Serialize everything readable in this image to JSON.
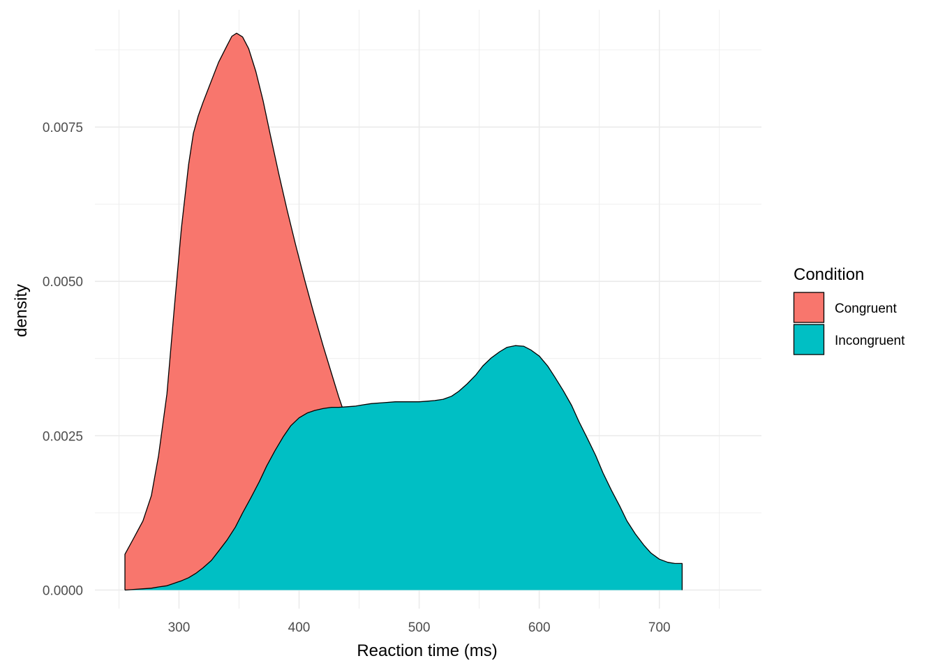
{
  "chart_data": {
    "type": "area",
    "subtype": "density",
    "title": "",
    "xlabel": "Reaction time (ms)",
    "ylabel": "density",
    "xlim": [
      230,
      785
    ],
    "ylim": [
      -0.0003,
      0.0094
    ],
    "x_ticks": [
      300,
      400,
      500,
      600,
      700
    ],
    "y_ticks": [
      0.0,
      0.0025,
      0.005,
      0.0075
    ],
    "x_tick_labels": [
      "300",
      "400",
      "500",
      "600",
      "700"
    ],
    "y_tick_labels": [
      "0.0000",
      "0.0025",
      "0.0050",
      "0.0075"
    ],
    "grid": true,
    "legend": {
      "title": "Condition",
      "position": "right"
    },
    "series": [
      {
        "name": "Congruent",
        "color": "#F8766D",
        "x": [
          255,
          262,
          270,
          277,
          283,
          290,
          296,
          302,
          308,
          312,
          316,
          320,
          327,
          333,
          340,
          344,
          348,
          353,
          358,
          364,
          370,
          376,
          383,
          390,
          397,
          405,
          412,
          420,
          427,
          433,
          440,
          447,
          453,
          460,
          467,
          473,
          480,
          487,
          494,
          500,
          508,
          515,
          520,
          528
        ],
        "values": [
          0.00058,
          0.00083,
          0.00112,
          0.00153,
          0.00218,
          0.00318,
          0.00455,
          0.00586,
          0.00689,
          0.0074,
          0.00768,
          0.0079,
          0.00825,
          0.00855,
          0.00882,
          0.00897,
          0.00902,
          0.00896,
          0.00877,
          0.0084,
          0.00793,
          0.00738,
          0.00675,
          0.00616,
          0.0056,
          0.005,
          0.0045,
          0.00396,
          0.00351,
          0.00313,
          0.00273,
          0.00238,
          0.00206,
          0.00175,
          0.00144,
          0.00118,
          0.0009,
          0.00066,
          0.00045,
          0.00029,
          0.00014,
          7e-05,
          3e-05,
          1e-05
        ]
      },
      {
        "name": "Incongruent",
        "color": "#00BFC4",
        "x": [
          255,
          262,
          270,
          277,
          283,
          290,
          296,
          302,
          308,
          314,
          320,
          327,
          333,
          340,
          347,
          353,
          360,
          367,
          373,
          380,
          387,
          393,
          400,
          407,
          413,
          420,
          427,
          433,
          440,
          447,
          453,
          460,
          467,
          473,
          480,
          487,
          493,
          500,
          507,
          513,
          520,
          527,
          533,
          540,
          547,
          553,
          560,
          567,
          573,
          580,
          587,
          593,
          600,
          607,
          613,
          620,
          627,
          633,
          640,
          647,
          653,
          660,
          667,
          673,
          680,
          687,
          693,
          700,
          707,
          713,
          719
        ],
        "values": [
          0.0,
          1e-05,
          2e-05,
          3e-05,
          5e-05,
          7e-05,
          0.00011,
          0.00015,
          0.0002,
          0.00027,
          0.00036,
          0.00048,
          0.00063,
          0.00081,
          0.00102,
          0.00125,
          0.0015,
          0.00176,
          0.00201,
          0.00226,
          0.00249,
          0.00266,
          0.00279,
          0.00287,
          0.00291,
          0.00294,
          0.00296,
          0.00296,
          0.00297,
          0.00298,
          0.003,
          0.00302,
          0.00303,
          0.00304,
          0.00305,
          0.00305,
          0.00305,
          0.00305,
          0.00306,
          0.00307,
          0.00309,
          0.00314,
          0.00322,
          0.00334,
          0.00348,
          0.00363,
          0.00376,
          0.00386,
          0.00393,
          0.00396,
          0.00395,
          0.00389,
          0.00379,
          0.00363,
          0.00345,
          0.00323,
          0.00299,
          0.00273,
          0.00246,
          0.00218,
          0.0019,
          0.00162,
          0.00136,
          0.00112,
          0.00091,
          0.00073,
          0.0006,
          0.0005,
          0.00045,
          0.00043,
          0.00043
        ]
      }
    ]
  }
}
